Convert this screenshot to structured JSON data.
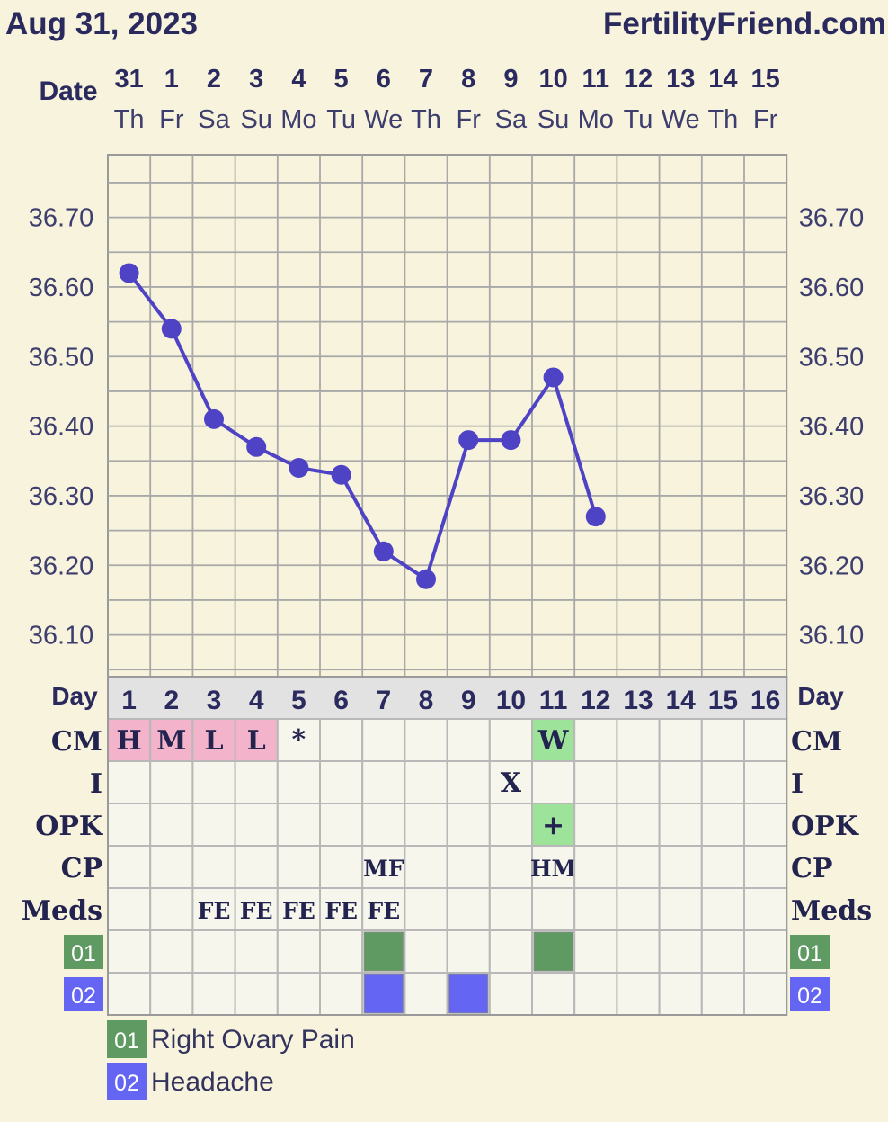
{
  "header": {
    "date": "Aug 31, 2023",
    "site": "FertilityFriend.com",
    "date_label": "Date"
  },
  "chart_data": {
    "type": "line",
    "dates": [
      "31",
      "1",
      "2",
      "3",
      "4",
      "5",
      "6",
      "7",
      "8",
      "9",
      "10",
      "11",
      "12",
      "13",
      "14",
      "15"
    ],
    "weekdays": [
      "Th",
      "Fr",
      "Sa",
      "Su",
      "Mo",
      "Tu",
      "We",
      "Th",
      "Fr",
      "Sa",
      "Su",
      "Mo",
      "Tu",
      "We",
      "Th",
      "Fr"
    ],
    "temps": [
      36.62,
      36.54,
      36.41,
      36.37,
      36.34,
      36.33,
      36.22,
      36.18,
      36.38,
      36.38,
      36.47,
      36.27,
      null,
      null,
      null,
      null
    ],
    "y_ticks": [
      "36.70",
      "36.60",
      "36.50",
      "36.40",
      "36.30",
      "36.20",
      "36.10"
    ],
    "ylim": [
      36.04,
      36.79
    ],
    "line_color": "#4e43c4",
    "grid": true
  },
  "table": {
    "day_label": "Day",
    "days": [
      "1",
      "2",
      "3",
      "4",
      "5",
      "6",
      "7",
      "8",
      "9",
      "10",
      "11",
      "12",
      "13",
      "14",
      "15",
      "16"
    ],
    "rows": [
      {
        "label": "CM",
        "cells": [
          "H",
          "M",
          "L",
          "L",
          "*",
          "",
          "",
          "",
          "",
          "",
          "W",
          "",
          "",
          "",
          "",
          ""
        ]
      },
      {
        "label": "I",
        "cells": [
          "",
          "",
          "",
          "",
          "",
          "",
          "",
          "",
          "",
          "X",
          "",
          "",
          "",
          "",
          "",
          ""
        ]
      },
      {
        "label": "OPK",
        "cells": [
          "",
          "",
          "",
          "",
          "",
          "",
          "",
          "",
          "",
          "",
          "+",
          "",
          "",
          "",
          "",
          ""
        ]
      },
      {
        "label": "CP",
        "cells": [
          "",
          "",
          "",
          "",
          "",
          "",
          "MF",
          "",
          "",
          "",
          "HM",
          "",
          "",
          "",
          "",
          ""
        ]
      },
      {
        "label": "Meds",
        "cells": [
          "",
          "",
          "FE",
          "FE",
          "FE",
          "FE",
          "FE",
          "",
          "",
          "",
          "",
          "",
          "",
          "",
          "",
          ""
        ]
      }
    ],
    "symptom_rows": [
      {
        "badge": "01",
        "color": "#5e9a62",
        "marks": [
          7,
          11
        ]
      },
      {
        "badge": "02",
        "color": "#6565f3",
        "marks": [
          7,
          9
        ]
      }
    ],
    "colors": {
      "cm_pink": "#f2b3cb",
      "fertile_green": "#9ee39a",
      "day_row": "#e2e2e2",
      "cell_bg": "#f6f6ec"
    }
  },
  "legend": [
    {
      "badge": "01",
      "label": "Right Ovary Pain",
      "color": "#5e9a62"
    },
    {
      "badge": "02",
      "label": "Headache",
      "color": "#6565f3"
    }
  ]
}
